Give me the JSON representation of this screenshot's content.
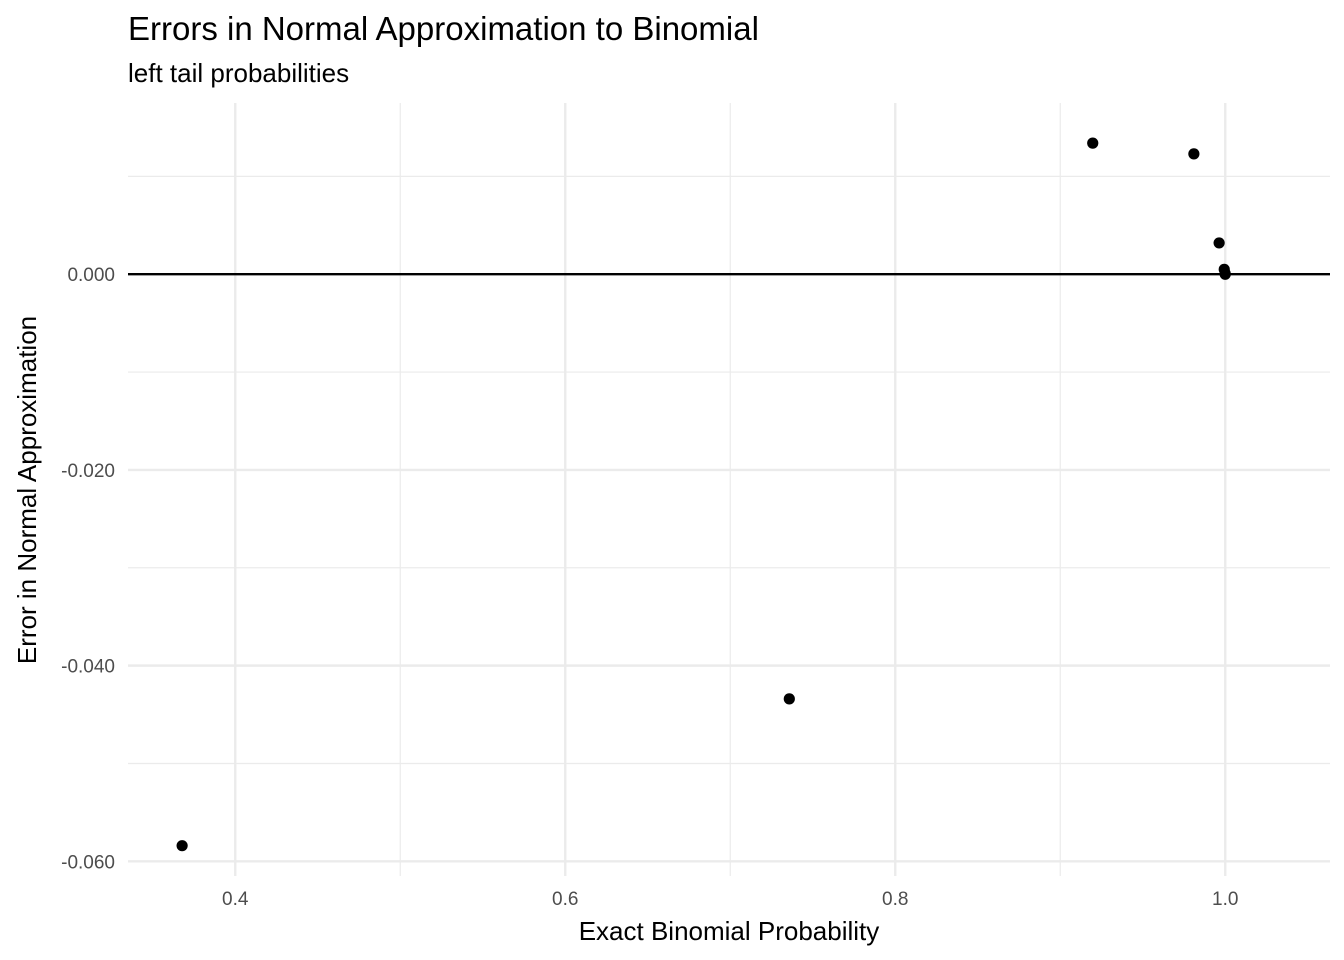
{
  "chart_data": {
    "type": "scatter",
    "title": "Errors in Normal Approximation to Binomial",
    "subtitle": "left tail probabilities",
    "xlabel": "Exact Binomial Probability",
    "ylabel": "Error in Normal Approximation",
    "xlim": [
      0.335,
      1.0635
    ],
    "ylim": [
      -0.0615,
      0.0175
    ],
    "x_ticks": [
      0.4,
      0.6,
      0.8,
      1.0
    ],
    "x_tick_labels": [
      "0.4",
      "0.6",
      "0.8",
      "1.0"
    ],
    "y_ticks": [
      -0.06,
      -0.04,
      -0.02,
      0.0
    ],
    "y_tick_labels": [
      "-0.060",
      "-0.040",
      "-0.020",
      "0.000"
    ],
    "hline": 0,
    "grid": true,
    "points": [
      {
        "x": 0.3678,
        "y": -0.0584
      },
      {
        "x": 0.7358,
        "y": -0.0434
      },
      {
        "x": 0.9197,
        "y": 0.0134
      },
      {
        "x": 0.981,
        "y": 0.0123
      },
      {
        "x": 0.9963,
        "y": 0.0032
      },
      {
        "x": 0.9994,
        "y": 0.0005
      },
      {
        "x": 0.9999,
        "y": 0.0001
      },
      {
        "x": 1.0,
        "y": 0.0
      }
    ]
  }
}
